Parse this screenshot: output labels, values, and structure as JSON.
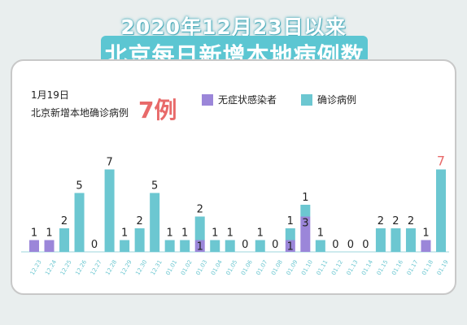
{
  "header": {
    "title_line1": "2020年12月23日以来",
    "title_line2": "北京每日新增本地病例数"
  },
  "info": {
    "date": "1月19日",
    "label": "北京新增本地确诊病例",
    "value": "7例"
  },
  "colors": {
    "confirmed": "#6cc7d1",
    "asymptomatic": "#9b86d9",
    "highlight_label": "#e86a6a",
    "title_box": "#5cc6d2"
  },
  "chart_data": {
    "type": "bar",
    "categories": [
      "12.23",
      "12.24",
      "12.25",
      "12.26",
      "12.27",
      "12.28",
      "12.29",
      "12.30",
      "12.31",
      "01.01",
      "01.02",
      "01.03",
      "01.04",
      "01.05",
      "01.06",
      "01.07",
      "01.08",
      "01.09",
      "01.10",
      "01.11",
      "01.12",
      "01.13",
      "01.14",
      "01.15",
      "01.16",
      "01.17",
      "01.18",
      "01.19"
    ],
    "stacked": true,
    "series": [
      {
        "name": "无症状感染者",
        "values": [
          1,
          1,
          0,
          0,
          0,
          0,
          0,
          0,
          0,
          0,
          0,
          1,
          0,
          0,
          0,
          0,
          0,
          1,
          3,
          0,
          0,
          0,
          0,
          0,
          0,
          0,
          1,
          0
        ]
      },
      {
        "name": "确诊病例",
        "values": [
          0,
          0,
          2,
          5,
          0,
          7,
          1,
          2,
          5,
          1,
          1,
          2,
          1,
          1,
          0,
          1,
          0,
          1,
          1,
          1,
          0,
          0,
          0,
          2,
          2,
          2,
          0,
          7
        ]
      }
    ],
    "ylim": [
      0,
      8
    ],
    "legend_position": "top-center",
    "grid": false
  }
}
